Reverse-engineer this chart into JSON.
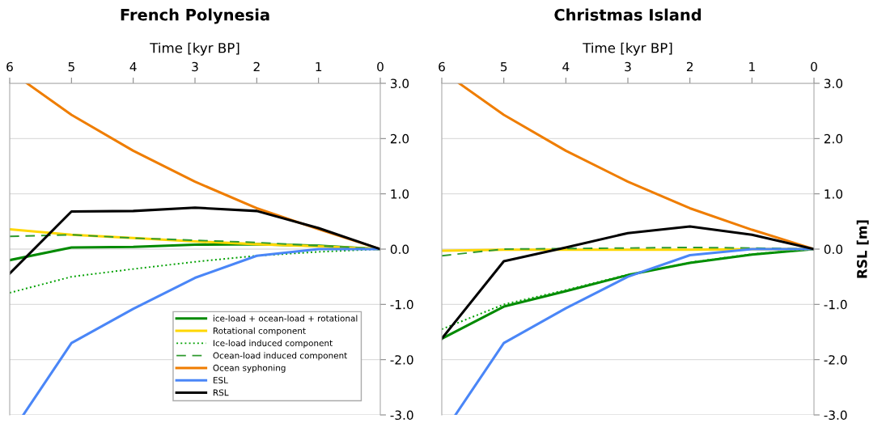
{
  "chart_data": [
    {
      "type": "line",
      "title": "French Polynesia",
      "xlabel": "Time [kyr BP]",
      "x": [
        6,
        5,
        4,
        3,
        2,
        1,
        0
      ],
      "xlim": [
        6,
        0
      ],
      "xticks": [
        6,
        5,
        4,
        3,
        2,
        1,
        0
      ],
      "ylim": [
        -3,
        3
      ],
      "yticks": [
        {
          "value": 3,
          "label": "3.0"
        },
        {
          "value": 2,
          "label": "2.0"
        },
        {
          "value": 1,
          "label": "1.0"
        },
        {
          "value": 0,
          "label": "0.0"
        },
        {
          "value": -1,
          "label": "-1.0"
        },
        {
          "value": -2,
          "label": "-2.0"
        },
        {
          "value": -3,
          "label": "-3.0"
        }
      ],
      "grid": "y",
      "legend": "bottom right",
      "series": [
        {
          "name": "ice-load + ocean-load + rotational",
          "color": "#008a00",
          "line_style": "solid",
          "values": [
            -0.2,
            0.03,
            0.04,
            0.08,
            0.09,
            0.06,
            0
          ]
        },
        {
          "name": "Rotational component",
          "color": "#ffd700",
          "line_style": "solid",
          "values": [
            0.36,
            0.26,
            0.2,
            0.14,
            0.09,
            0.05,
            0
          ]
        },
        {
          "name": "Ice-load induced component",
          "color": "#00a000",
          "line_style": "dotted",
          "values": [
            -0.79,
            -0.5,
            -0.36,
            -0.23,
            -0.12,
            -0.05,
            0
          ]
        },
        {
          "name": "Ocean-load induced component",
          "color": "#2e9a2e",
          "line_style": "dashed",
          "values": [
            0.23,
            0.26,
            0.2,
            0.16,
            0.12,
            0.06,
            0
          ]
        },
        {
          "name": "Ocean syphoning",
          "color": "#ef7d00",
          "line_style": "solid",
          "x": [
            5.72,
            5,
            4,
            3,
            2,
            1,
            0
          ],
          "values": [
            3.0,
            2.43,
            1.78,
            1.22,
            0.74,
            0.36,
            0
          ]
        },
        {
          "name": "ESL",
          "color": "#4a86f7",
          "line_style": "solid",
          "x": [
            5.78,
            5,
            4,
            3,
            2,
            1,
            0
          ],
          "values": [
            -3.0,
            -1.7,
            -1.08,
            -0.52,
            -0.12,
            0.0,
            0
          ]
        },
        {
          "name": "RSL",
          "color": "#000000",
          "line_style": "solid",
          "values": [
            -0.44,
            0.68,
            0.69,
            0.75,
            0.69,
            0.38,
            0
          ]
        }
      ]
    },
    {
      "type": "line",
      "title": "Christmas Island",
      "xlabel": "Time [kyr BP]",
      "ylabel": "RSL [m]",
      "x": [
        6,
        5,
        4,
        3,
        2,
        1,
        0
      ],
      "xlim": [
        6,
        0
      ],
      "xticks": [
        6,
        5,
        4,
        3,
        2,
        1,
        0
      ],
      "ylim": [
        -3,
        3
      ],
      "yticks": [
        {
          "value": 3,
          "label": "3.0"
        },
        {
          "value": 2,
          "label": "2.0"
        },
        {
          "value": 1,
          "label": "1.0"
        },
        {
          "value": 0,
          "label": "0.0"
        },
        {
          "value": -1,
          "label": "-1.0"
        },
        {
          "value": -2,
          "label": "-2.0"
        },
        {
          "value": -3,
          "label": "-3.0"
        }
      ],
      "grid": "y",
      "series": [
        {
          "color": "#008a00",
          "line_style": "solid",
          "values": [
            -1.62,
            -1.04,
            -0.76,
            -0.47,
            -0.25,
            -0.1,
            0
          ]
        },
        {
          "color": "#ffd700",
          "line_style": "solid",
          "values": [
            -0.03,
            -0.01,
            -0.01,
            -0.01,
            -0.01,
            0,
            0
          ]
        },
        {
          "color": "#00a000",
          "line_style": "dotted",
          "values": [
            -1.45,
            -1.0,
            -0.74,
            -0.46,
            -0.24,
            -0.09,
            0
          ]
        },
        {
          "color": "#2e9a2e",
          "line_style": "dashed",
          "values": [
            -0.12,
            0.0,
            0.01,
            0.02,
            0.03,
            0.02,
            0
          ]
        },
        {
          "color": "#ef7d00",
          "line_style": "solid",
          "x": [
            5.72,
            5,
            4,
            3,
            2,
            1,
            0
          ],
          "values": [
            3.0,
            2.43,
            1.78,
            1.22,
            0.74,
            0.35,
            0
          ]
        },
        {
          "color": "#4a86f7",
          "line_style": "solid",
          "x": [
            5.78,
            5,
            4,
            3,
            2,
            1,
            0
          ],
          "values": [
            -3.0,
            -1.7,
            -1.07,
            -0.5,
            -0.11,
            0.0,
            0
          ]
        },
        {
          "color": "#000000",
          "line_style": "solid",
          "values": [
            -1.62,
            -0.22,
            0.03,
            0.29,
            0.41,
            0.26,
            0
          ]
        }
      ]
    }
  ]
}
